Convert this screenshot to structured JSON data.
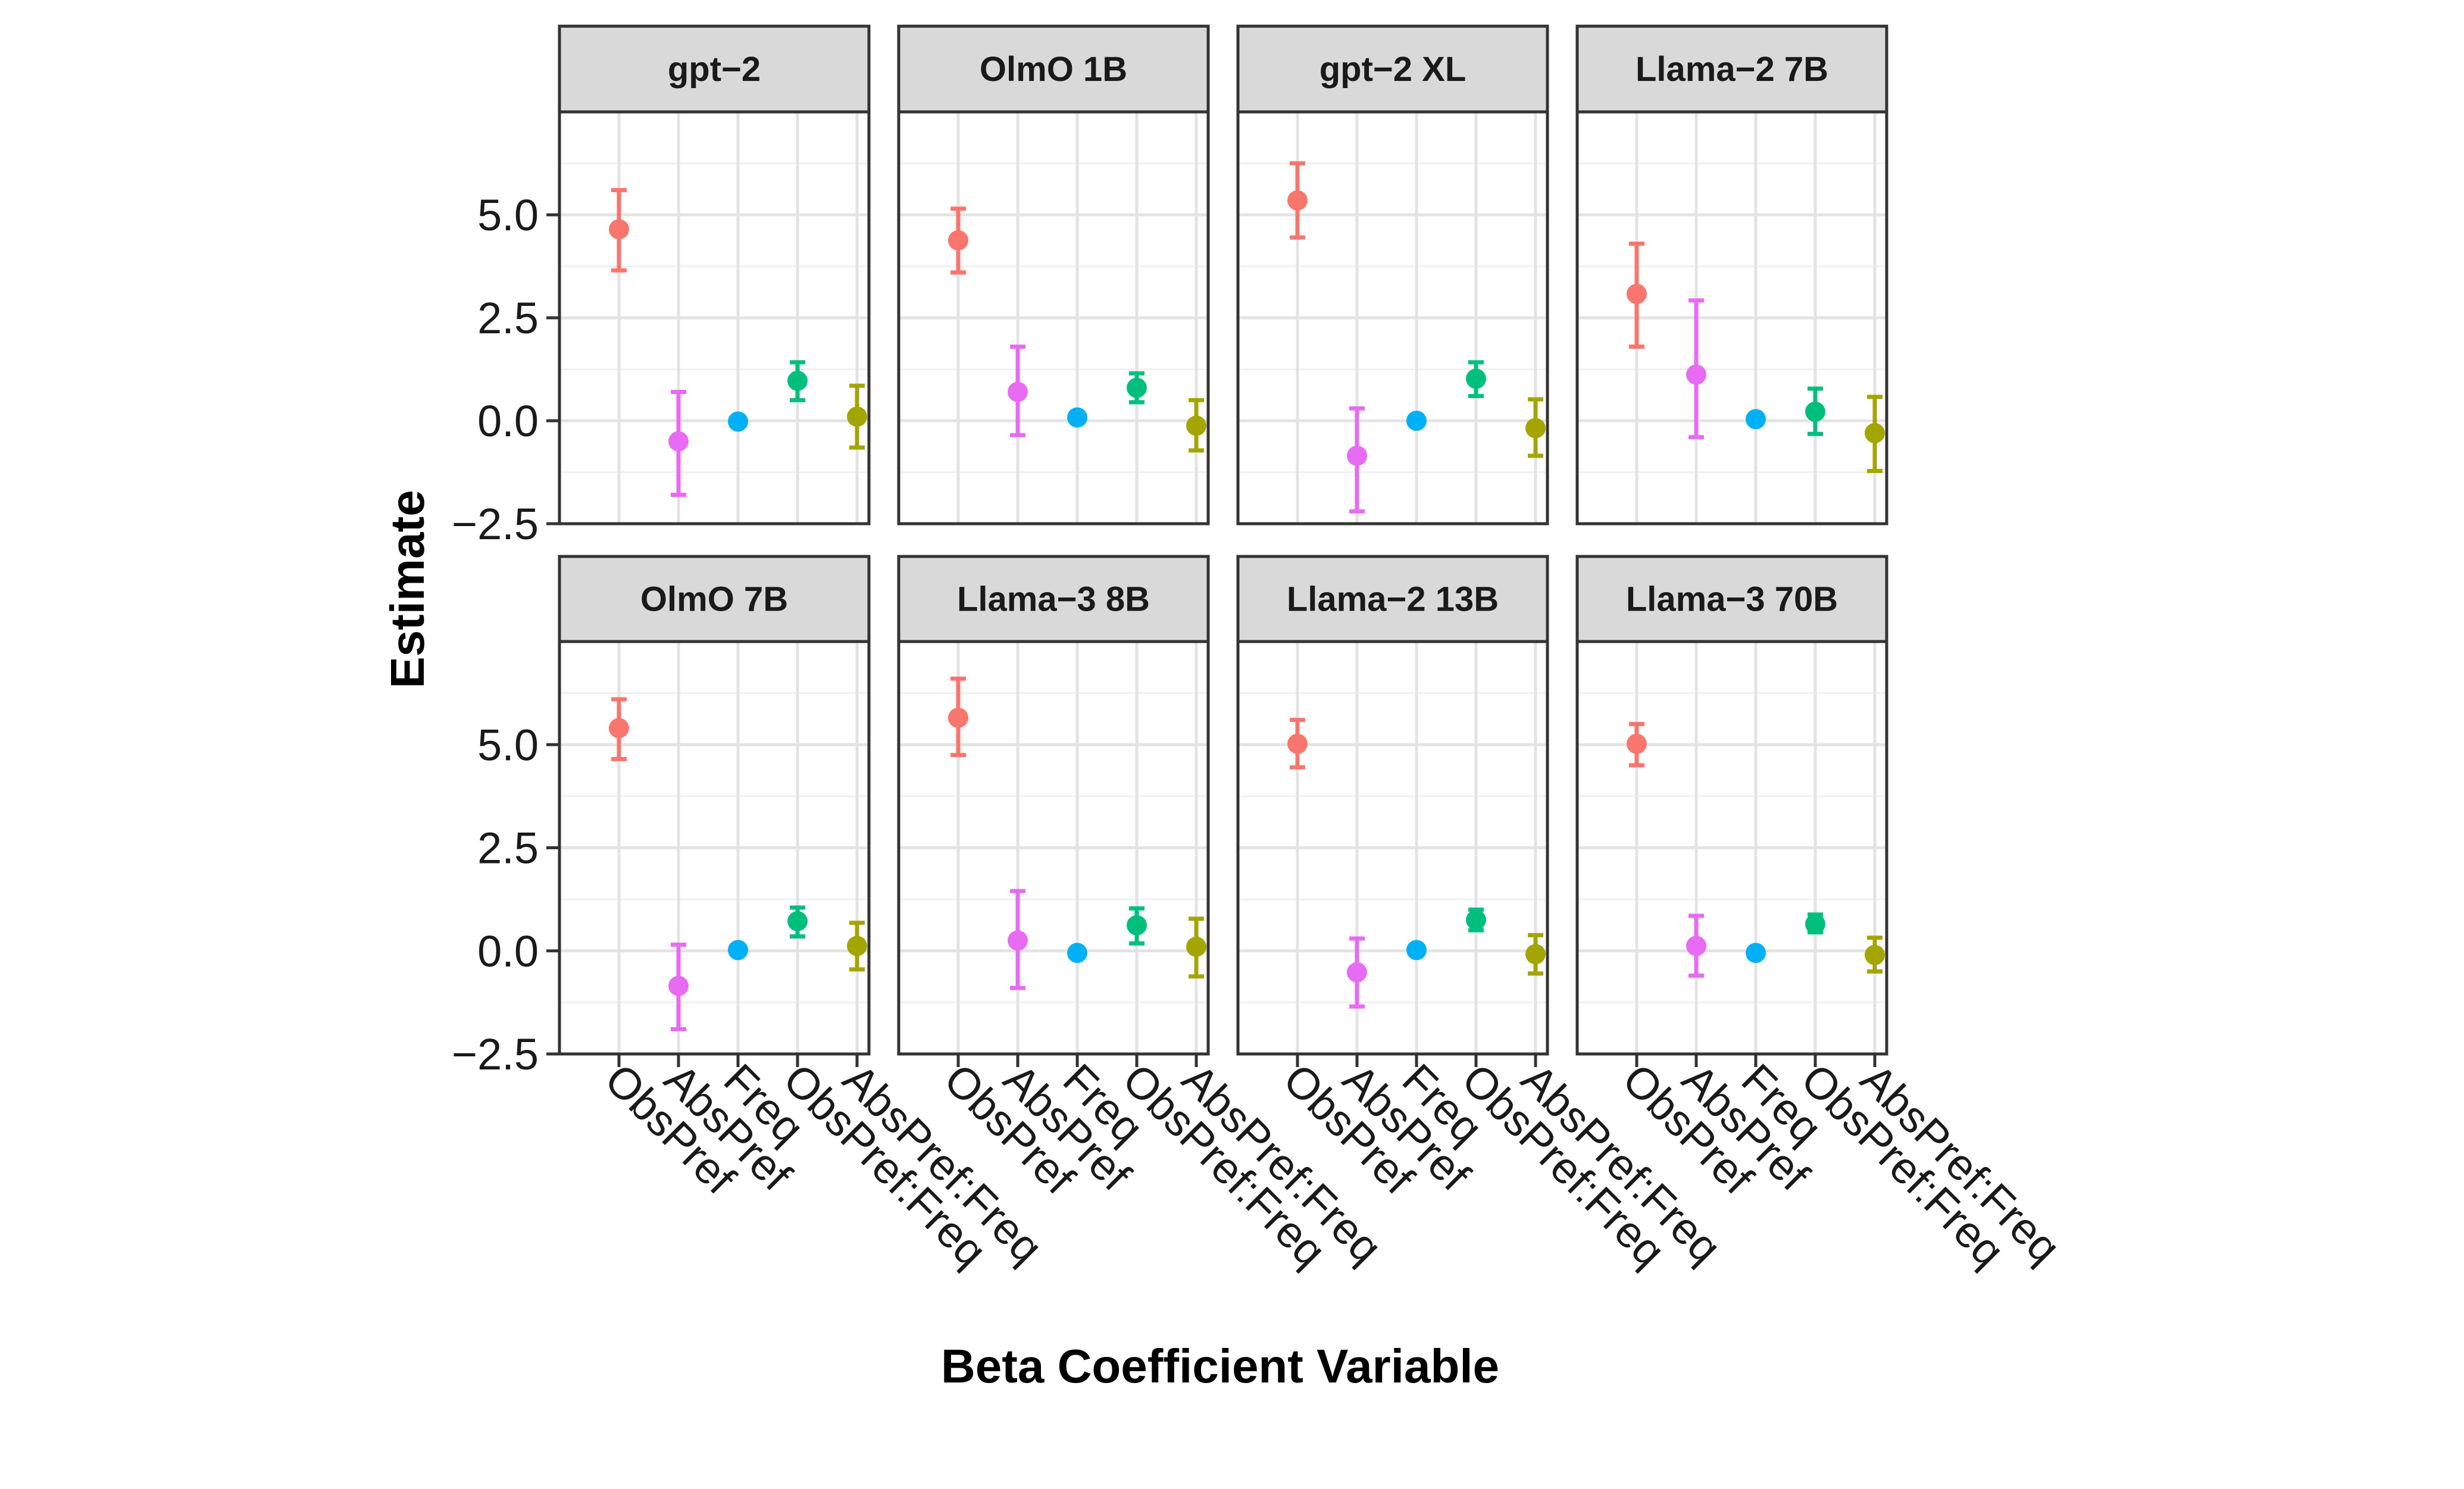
{
  "chart_data": {
    "type": "errorbar-faceted",
    "xlabel": "Beta Coefficient Variable",
    "ylabel": "Estimate",
    "ylim": [
      -2.5,
      7.5
    ],
    "y_ticks": [
      -2.5,
      0.0,
      2.5,
      5.0
    ],
    "y_tick_labels": [
      "−2.5",
      "0.0",
      "2.5",
      "5.0"
    ],
    "categories": [
      "ObsPref",
      "AbsPref",
      "Freq",
      "ObsPref:Freq",
      "AbsPref:Freq"
    ],
    "category_colors": [
      "#F8766D",
      "#E76BF3",
      "#00B0F6",
      "#00BF7D",
      "#A3A500"
    ],
    "grid": true,
    "panels": [
      {
        "title": "gpt−2",
        "points": [
          {
            "estimate": 4.65,
            "lower": 3.65,
            "upper": 5.6
          },
          {
            "estimate": -0.5,
            "lower": -1.8,
            "upper": 0.7
          },
          {
            "estimate": -0.02,
            "lower": -0.02,
            "upper": -0.02
          },
          {
            "estimate": 0.97,
            "lower": 0.5,
            "upper": 1.42
          },
          {
            "estimate": 0.1,
            "lower": -0.65,
            "upper": 0.85
          }
        ]
      },
      {
        "title": "OlmO 1B",
        "points": [
          {
            "estimate": 4.38,
            "lower": 3.6,
            "upper": 5.15
          },
          {
            "estimate": 0.7,
            "lower": -0.35,
            "upper": 1.8
          },
          {
            "estimate": 0.08,
            "lower": 0.08,
            "upper": 0.08
          },
          {
            "estimate": 0.8,
            "lower": 0.45,
            "upper": 1.15
          },
          {
            "estimate": -0.12,
            "lower": -0.72,
            "upper": 0.5
          }
        ]
      },
      {
        "title": "gpt−2 XL",
        "points": [
          {
            "estimate": 5.35,
            "lower": 4.45,
            "upper": 6.25
          },
          {
            "estimate": -0.85,
            "lower": -2.2,
            "upper": 0.3
          },
          {
            "estimate": 0.0,
            "lower": 0.0,
            "upper": 0.0
          },
          {
            "estimate": 1.02,
            "lower": 0.6,
            "upper": 1.42
          },
          {
            "estimate": -0.18,
            "lower": -0.85,
            "upper": 0.52
          }
        ]
      },
      {
        "title": "Llama−2 7B",
        "points": [
          {
            "estimate": 3.08,
            "lower": 1.8,
            "upper": 4.3
          },
          {
            "estimate": 1.12,
            "lower": -0.4,
            "upper": 2.92
          },
          {
            "estimate": 0.04,
            "lower": 0.04,
            "upper": 0.04
          },
          {
            "estimate": 0.22,
            "lower": -0.32,
            "upper": 0.78
          },
          {
            "estimate": -0.3,
            "lower": -1.22,
            "upper": 0.58
          }
        ]
      },
      {
        "title": "OlmO 7B",
        "points": [
          {
            "estimate": 5.4,
            "lower": 4.65,
            "upper": 6.1
          },
          {
            "estimate": -0.85,
            "lower": -1.9,
            "upper": 0.15
          },
          {
            "estimate": 0.02,
            "lower": 0.02,
            "upper": 0.02
          },
          {
            "estimate": 0.72,
            "lower": 0.35,
            "upper": 1.05
          },
          {
            "estimate": 0.12,
            "lower": -0.45,
            "upper": 0.68
          }
        ]
      },
      {
        "title": "Llama−3 8B",
        "points": [
          {
            "estimate": 5.65,
            "lower": 4.75,
            "upper": 6.6
          },
          {
            "estimate": 0.25,
            "lower": -0.9,
            "upper": 1.45
          },
          {
            "estimate": -0.05,
            "lower": -0.05,
            "upper": -0.05
          },
          {
            "estimate": 0.62,
            "lower": 0.18,
            "upper": 1.03
          },
          {
            "estimate": 0.1,
            "lower": -0.62,
            "upper": 0.78
          }
        ]
      },
      {
        "title": "Llama−2 13B",
        "points": [
          {
            "estimate": 5.02,
            "lower": 4.45,
            "upper": 5.6
          },
          {
            "estimate": -0.52,
            "lower": -1.35,
            "upper": 0.3
          },
          {
            "estimate": 0.02,
            "lower": 0.02,
            "upper": 0.02
          },
          {
            "estimate": 0.75,
            "lower": 0.5,
            "upper": 1.0
          },
          {
            "estimate": -0.08,
            "lower": -0.55,
            "upper": 0.38
          }
        ]
      },
      {
        "title": "Llama−3 70B",
        "points": [
          {
            "estimate": 5.02,
            "lower": 4.5,
            "upper": 5.5
          },
          {
            "estimate": 0.12,
            "lower": -0.6,
            "upper": 0.85
          },
          {
            "estimate": -0.05,
            "lower": -0.05,
            "upper": -0.05
          },
          {
            "estimate": 0.65,
            "lower": 0.45,
            "upper": 0.88
          },
          {
            "estimate": -0.1,
            "lower": -0.5,
            "upper": 0.32
          }
        ]
      }
    ]
  }
}
